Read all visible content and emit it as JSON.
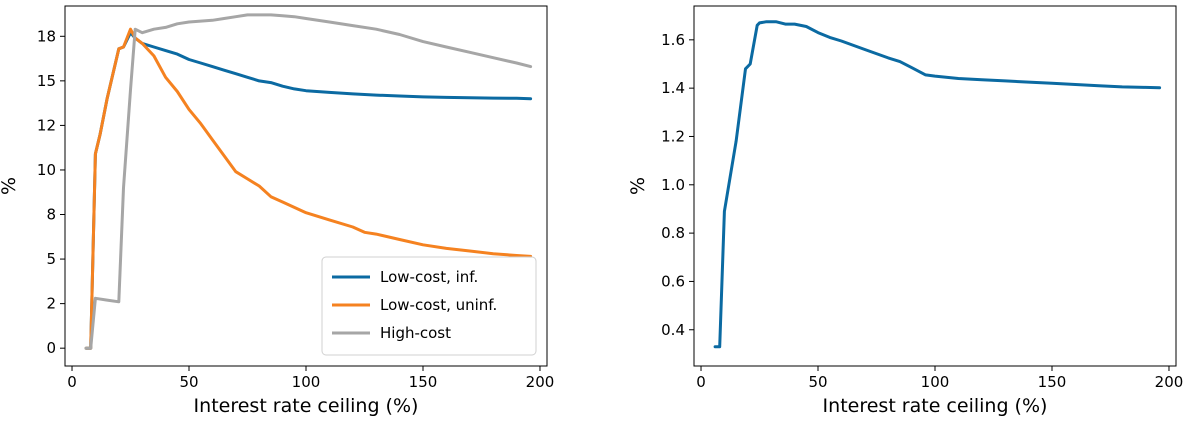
{
  "chart_data": [
    {
      "type": "line",
      "xlabel": "Interest rate ceiling (%)",
      "ylabel": "%",
      "xlim": [
        -3,
        203
      ],
      "ylim": [
        -1,
        19.2
      ],
      "xticks": [
        0,
        50,
        100,
        150,
        200
      ],
      "xtick_labels": [
        "0",
        "50",
        "100",
        "150",
        "200"
      ],
      "yticks": [
        0,
        2.5,
        5,
        7.5,
        10,
        12.5,
        15,
        17.5
      ],
      "ytick_labels": [
        "0",
        "2",
        "5",
        "8",
        "10",
        "12",
        "15",
        "18"
      ],
      "grid": false,
      "legend": "lower-right",
      "series": [
        {
          "name": "Low-cost, inf.",
          "color": "#0b6aa2",
          "x": [
            6,
            8,
            10,
            12,
            15,
            20,
            22,
            25,
            27,
            30,
            35,
            40,
            45,
            50,
            55,
            60,
            65,
            70,
            75,
            80,
            85,
            90,
            95,
            100,
            110,
            120,
            130,
            140,
            150,
            160,
            170,
            180,
            190,
            196
          ],
          "y": [
            0,
            0,
            10.9,
            12.0,
            14.0,
            16.8,
            16.9,
            17.7,
            17.4,
            17.1,
            16.9,
            16.7,
            16.5,
            16.2,
            16.0,
            15.8,
            15.6,
            15.4,
            15.2,
            15.0,
            14.9,
            14.7,
            14.55,
            14.45,
            14.35,
            14.27,
            14.2,
            14.15,
            14.1,
            14.07,
            14.05,
            14.03,
            14.02,
            14.0
          ]
        },
        {
          "name": "Low-cost, uninf.",
          "color": "#f58220",
          "x": [
            6,
            8,
            10,
            12,
            15,
            20,
            22,
            25,
            27,
            30,
            35,
            40,
            45,
            50,
            55,
            60,
            65,
            70,
            75,
            80,
            85,
            90,
            95,
            100,
            110,
            120,
            125,
            130,
            140,
            150,
            160,
            170,
            180,
            190,
            196
          ],
          "y": [
            0,
            0,
            10.9,
            12.0,
            14.0,
            16.8,
            16.9,
            17.9,
            17.4,
            17.1,
            16.4,
            15.2,
            14.4,
            13.4,
            12.6,
            11.7,
            10.8,
            9.9,
            9.5,
            9.1,
            8.5,
            8.2,
            7.9,
            7.6,
            7.2,
            6.8,
            6.5,
            6.4,
            6.1,
            5.8,
            5.6,
            5.45,
            5.3,
            5.2,
            5.15
          ]
        },
        {
          "name": "High-cost",
          "color": "#a6a6a6",
          "x": [
            6,
            8,
            10,
            15,
            20,
            22,
            25,
            27,
            30,
            35,
            40,
            45,
            50,
            55,
            60,
            65,
            70,
            75,
            80,
            85,
            90,
            95,
            100,
            110,
            120,
            130,
            140,
            150,
            160,
            170,
            180,
            190,
            196
          ],
          "y": [
            0,
            0,
            2.8,
            2.7,
            2.6,
            9.0,
            14.5,
            17.9,
            17.7,
            17.9,
            18.0,
            18.2,
            18.3,
            18.35,
            18.4,
            18.5,
            18.6,
            18.7,
            18.7,
            18.7,
            18.65,
            18.6,
            18.5,
            18.3,
            18.1,
            17.9,
            17.6,
            17.2,
            16.9,
            16.6,
            16.3,
            16.0,
            15.8
          ]
        }
      ]
    },
    {
      "type": "line",
      "xlabel": "Interest rate ceiling (%)",
      "ylabel": "%",
      "xlim": [
        -3,
        203
      ],
      "ylim": [
        0.25,
        1.74
      ],
      "xticks": [
        0,
        50,
        100,
        150,
        200
      ],
      "xtick_labels": [
        "0",
        "50",
        "100",
        "150",
        "200"
      ],
      "yticks": [
        0.4,
        0.6,
        0.8,
        1.0,
        1.2,
        1.4,
        1.6
      ],
      "ytick_labels": [
        "0.4",
        "0.6",
        "0.8",
        "1.0",
        "1.2",
        "1.4",
        "1.6"
      ],
      "grid": false,
      "series": [
        {
          "color": "#0b6aa2",
          "x": [
            6,
            8,
            10,
            15,
            19,
            21,
            24,
            25,
            28,
            32,
            36,
            40,
            45,
            50,
            55,
            60,
            70,
            80,
            85,
            90,
            96,
            100,
            110,
            120,
            130,
            140,
            150,
            160,
            170,
            180,
            190,
            196
          ],
          "y": [
            0.33,
            0.33,
            0.89,
            1.18,
            1.48,
            1.5,
            1.66,
            1.67,
            1.675,
            1.675,
            1.665,
            1.665,
            1.655,
            1.63,
            1.61,
            1.595,
            1.56,
            1.525,
            1.51,
            1.485,
            1.455,
            1.45,
            1.44,
            1.435,
            1.43,
            1.425,
            1.42,
            1.415,
            1.41,
            1.405,
            1.403,
            1.402
          ]
        }
      ]
    }
  ]
}
